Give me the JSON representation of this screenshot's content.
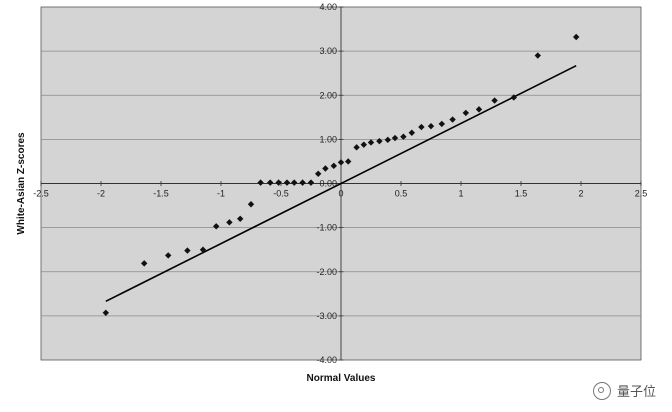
{
  "chart_data": {
    "type": "scatter",
    "title": "",
    "xlabel": "Normal Values",
    "ylabel": "White-Asian Z-scores",
    "xlim": [
      -2.5,
      2.5
    ],
    "ylim": [
      -4.0,
      4.0
    ],
    "x_ticks": [
      "-2.5",
      "-2",
      "-1.5",
      "-1",
      "-0.5",
      "0",
      "0.5",
      "1",
      "1.5",
      "2",
      "2.5"
    ],
    "x_tick_values": [
      -2.5,
      -2,
      -1.5,
      -1,
      -0.5,
      0,
      0.5,
      1,
      1.5,
      2,
      2.5
    ],
    "y_ticks": [
      "4.00",
      "3.00",
      "2.00",
      "1.00",
      "0.00",
      "-1.00",
      "-2.00",
      "-3.00",
      "-4.00"
    ],
    "y_tick_values": [
      4,
      3,
      2,
      1,
      0,
      -1,
      -2,
      -3,
      -4
    ],
    "grid": true,
    "background_color": "#d4d4d4",
    "marker_color": "#111111",
    "points": [
      {
        "x": -1.96,
        "y": -2.93
      },
      {
        "x": -1.64,
        "y": -1.81
      },
      {
        "x": -1.44,
        "y": -1.63
      },
      {
        "x": -1.28,
        "y": -1.52
      },
      {
        "x": -1.15,
        "y": -1.5
      },
      {
        "x": -1.04,
        "y": -0.97
      },
      {
        "x": -0.93,
        "y": -0.88
      },
      {
        "x": -0.84,
        "y": -0.8
      },
      {
        "x": -0.75,
        "y": -0.47
      },
      {
        "x": -0.67,
        "y": 0.02
      },
      {
        "x": -0.59,
        "y": 0.02
      },
      {
        "x": -0.52,
        "y": 0.02
      },
      {
        "x": -0.45,
        "y": 0.02
      },
      {
        "x": -0.39,
        "y": 0.02
      },
      {
        "x": -0.32,
        "y": 0.02
      },
      {
        "x": -0.25,
        "y": 0.02
      },
      {
        "x": -0.19,
        "y": 0.22
      },
      {
        "x": -0.13,
        "y": 0.34
      },
      {
        "x": -0.06,
        "y": 0.4
      },
      {
        "x": 0.0,
        "y": 0.48
      },
      {
        "x": 0.06,
        "y": 0.5
      },
      {
        "x": 0.13,
        "y": 0.82
      },
      {
        "x": 0.19,
        "y": 0.88
      },
      {
        "x": 0.25,
        "y": 0.93
      },
      {
        "x": 0.32,
        "y": 0.96
      },
      {
        "x": 0.39,
        "y": 0.99
      },
      {
        "x": 0.45,
        "y": 1.03
      },
      {
        "x": 0.52,
        "y": 1.06
      },
      {
        "x": 0.59,
        "y": 1.15
      },
      {
        "x": 0.67,
        "y": 1.28
      },
      {
        "x": 0.75,
        "y": 1.3
      },
      {
        "x": 0.84,
        "y": 1.35
      },
      {
        "x": 0.93,
        "y": 1.45
      },
      {
        "x": 1.04,
        "y": 1.6
      },
      {
        "x": 1.15,
        "y": 1.68
      },
      {
        "x": 1.28,
        "y": 1.88
      },
      {
        "x": 1.44,
        "y": 1.95
      },
      {
        "x": 1.64,
        "y": 2.9
      },
      {
        "x": 1.96,
        "y": 3.32
      }
    ],
    "reference_line": {
      "x": [
        -1.96,
        1.96
      ],
      "y": [
        -2.67,
        2.67
      ]
    }
  },
  "watermark": {
    "text": "量子位",
    "icon": "wechat-icon"
  }
}
